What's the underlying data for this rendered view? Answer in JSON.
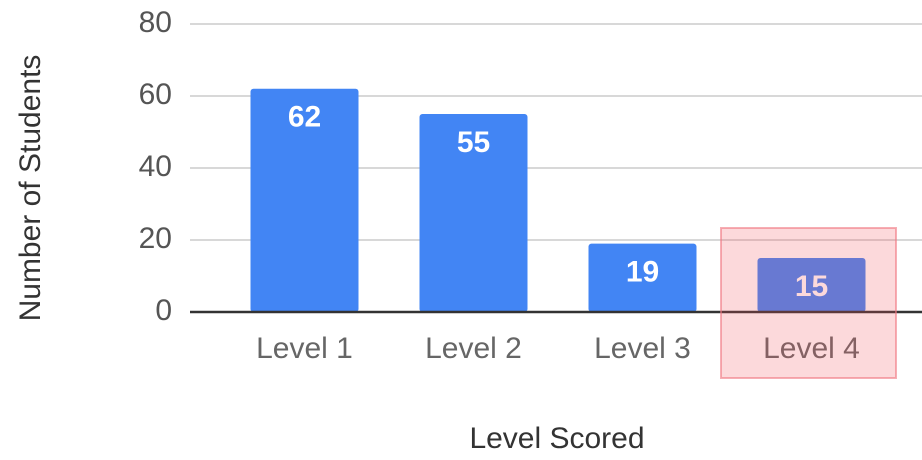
{
  "chart_data": {
    "type": "bar",
    "categories": [
      "Level 1",
      "Level 2",
      "Level 3",
      "Level 4"
    ],
    "values": [
      62,
      55,
      19,
      15
    ],
    "color": "#4285f4",
    "xlabel": "Level Scored",
    "ylabel": "Number of Students",
    "ylim": [
      0,
      80
    ],
    "yticks": [
      0,
      20,
      40,
      60,
      80
    ],
    "grid": true
  }
}
